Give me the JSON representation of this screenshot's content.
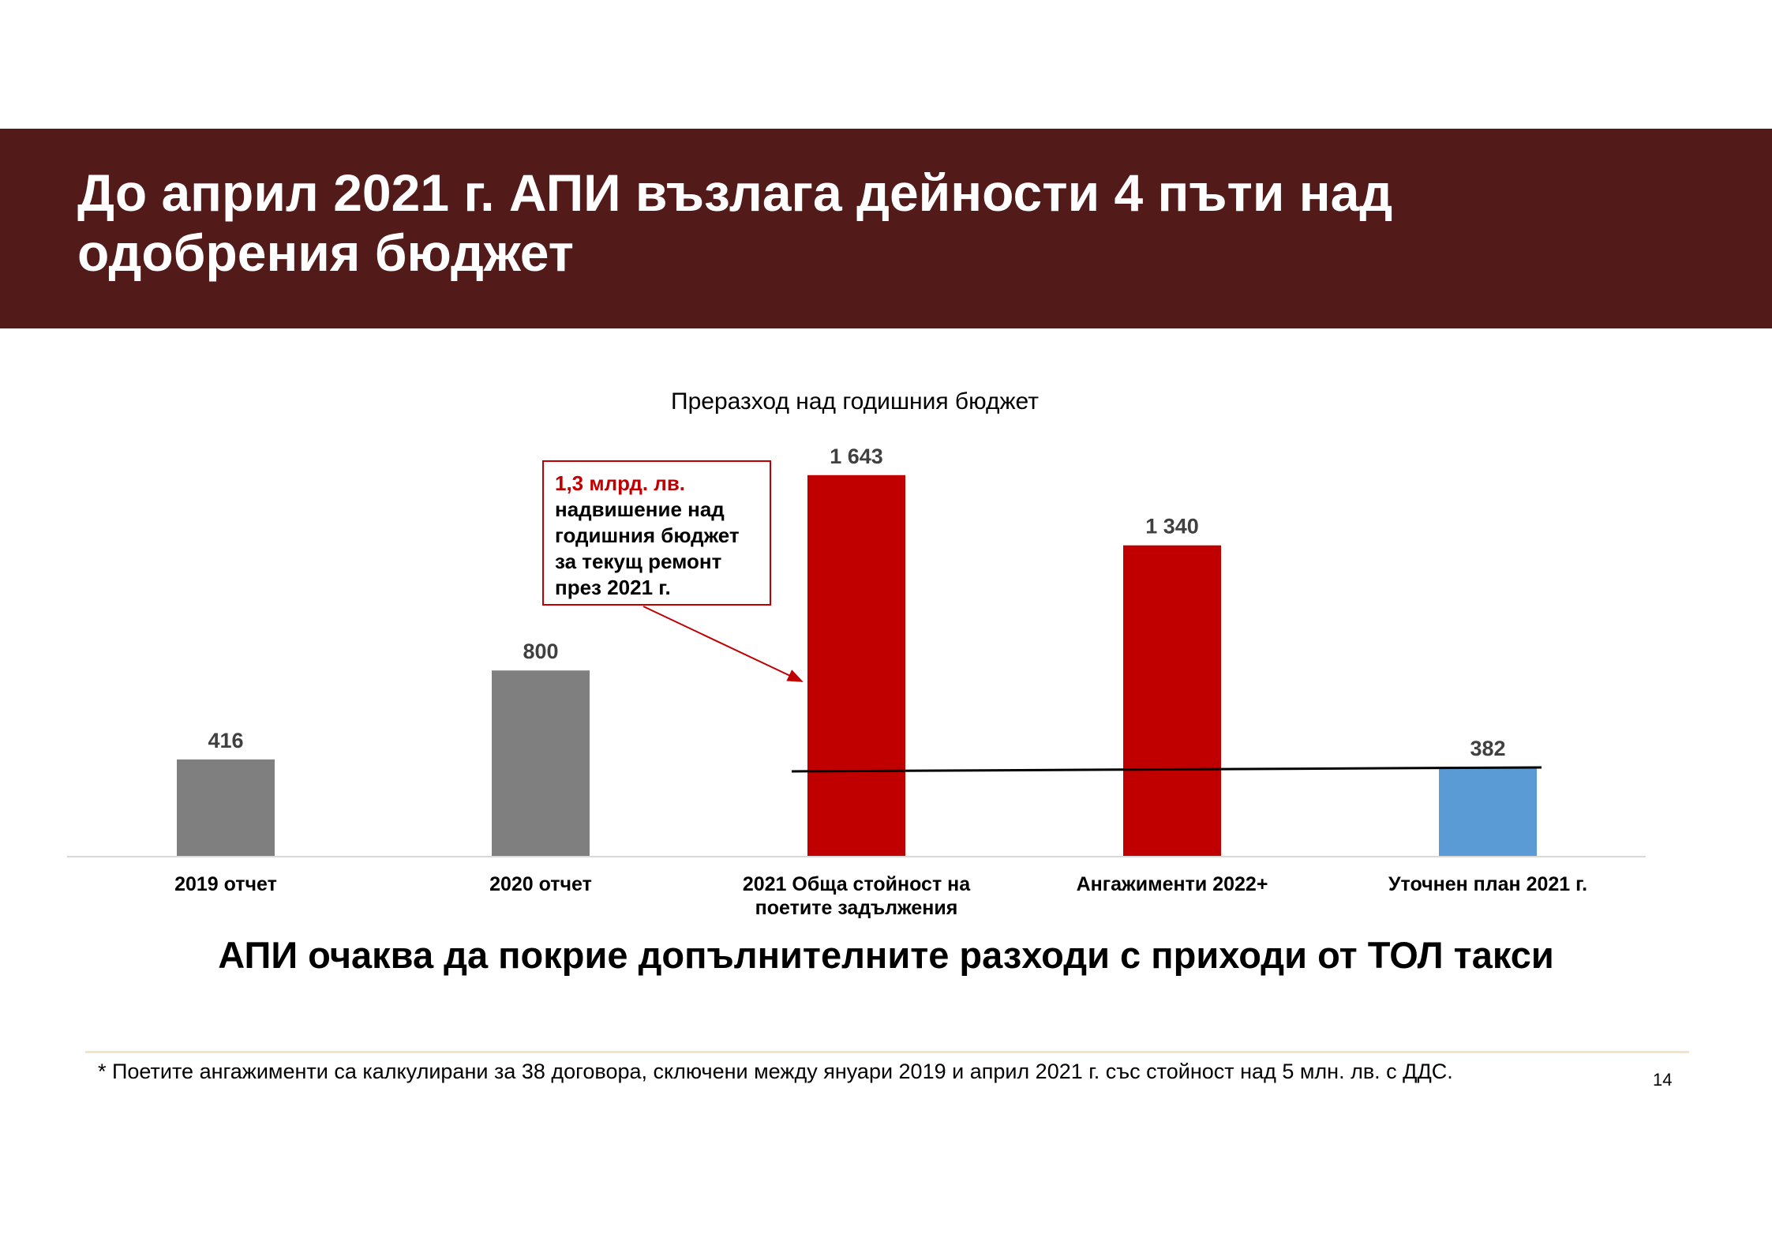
{
  "slide": {
    "title": "До април 2021 г. АПИ възлага дейности 4 пъти над одобрения бюджет",
    "subtitle": "АПИ очаква да покрие допълнителните разходи с приходи от ТОЛ такси",
    "footnote": "* Поетите ангажименти са калкулирани за 38 договора, сключени между януари 2019 и април 2021 г. със стойност над 5 млн. лв. с ДДС.",
    "page_number": "14",
    "colors": {
      "title_band": "#521a18",
      "gray_bar": "#7f7f7f",
      "red_bar": "#c00000",
      "blue_bar": "#5b9bd5",
      "annotation_red": "#c00000"
    }
  },
  "chart_data": {
    "type": "bar",
    "title": "Преразход над годишния бюджет",
    "categories": [
      "2019 отчет",
      "2020 отчет",
      "2021 Обща стойност на поетите задължения",
      "Ангажименти 2022+",
      "Уточнен план 2021 г."
    ],
    "category_lines": [
      [
        "2019 отчет"
      ],
      [
        "2020 отчет"
      ],
      [
        "2021 Обща стойност на",
        "поетите задължения"
      ],
      [
        "Ангажименти 2022+"
      ],
      [
        "Уточнен план 2021 г."
      ]
    ],
    "values": [
      416,
      800,
      1643,
      1340,
      382
    ],
    "value_labels": [
      "416",
      "800",
      "1 643",
      "1 340",
      "382"
    ],
    "bar_colors": [
      "#7f7f7f",
      "#7f7f7f",
      "#c00000",
      "#c00000",
      "#5b9bd5"
    ],
    "reference_line": {
      "value": 382,
      "from_category": 2,
      "to_category": 4
    },
    "annotation": {
      "highlight": "1,3 млрд. лв.",
      "lines": [
        "надвишение над",
        "годишния бюджет",
        "за текущ ремонт",
        "през 2021 г."
      ],
      "points_to_category": 2
    },
    "ylim": [
      0,
      1700
    ],
    "xlabel": "",
    "ylabel": "",
    "grid": false,
    "legend": "none"
  }
}
